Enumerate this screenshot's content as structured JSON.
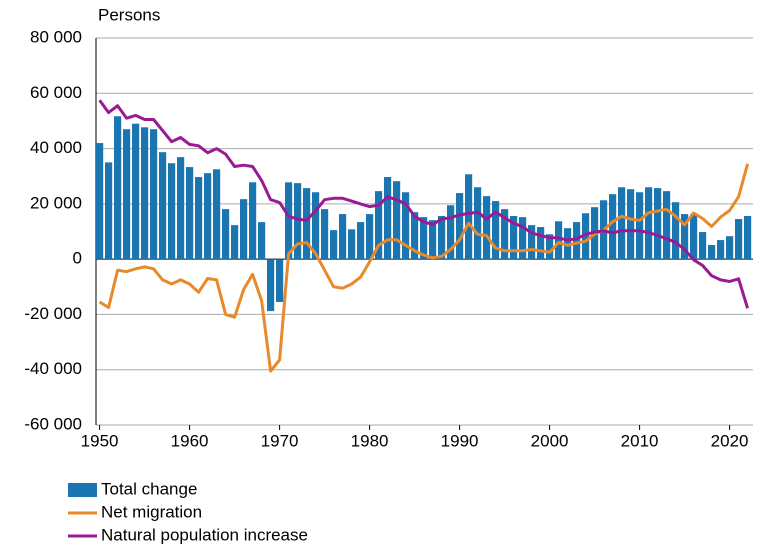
{
  "chart_data": {
    "type": "bar_line",
    "y_label": "Persons",
    "x": [
      1950,
      1951,
      1952,
      1953,
      1954,
      1955,
      1956,
      1957,
      1958,
      1959,
      1960,
      1961,
      1962,
      1963,
      1964,
      1965,
      1966,
      1967,
      1968,
      1969,
      1970,
      1971,
      1972,
      1973,
      1974,
      1975,
      1976,
      1977,
      1978,
      1979,
      1980,
      1981,
      1982,
      1983,
      1984,
      1985,
      1986,
      1987,
      1988,
      1989,
      1990,
      1991,
      1992,
      1993,
      1994,
      1995,
      1996,
      1997,
      1998,
      1999,
      2000,
      2001,
      2002,
      2003,
      2004,
      2005,
      2006,
      2007,
      2008,
      2009,
      2010,
      2011,
      2012,
      2013,
      2014,
      2015,
      2016,
      2017,
      2018,
      2019,
      2020,
      2021,
      2022
    ],
    "series": [
      {
        "name": "Total change",
        "kind": "bar",
        "color": "#1b75b1",
        "values": [
          42000,
          35000,
          51700,
          47000,
          49000,
          47700,
          47000,
          38700,
          34700,
          36900,
          33300,
          29700,
          31100,
          32500,
          18100,
          12300,
          21700,
          27800,
          13400,
          -18800,
          -15500,
          27800,
          27500,
          25700,
          24200,
          18100,
          10500,
          16300,
          10800,
          13400,
          16300,
          24600,
          29700,
          28200,
          24200,
          17000,
          15200,
          14100,
          15600,
          19500,
          23900,
          30700,
          26000,
          22800,
          21000,
          18100,
          15600,
          15200,
          12300,
          11600,
          9000,
          13700,
          11200,
          13400,
          16600,
          18800,
          21300,
          23500,
          26000,
          25300,
          24200,
          26000,
          25700,
          24600,
          20600,
          16300,
          16300,
          9800,
          5100,
          6900,
          8300,
          14500,
          15600
        ]
      },
      {
        "name": "Net migration",
        "kind": "line",
        "color": "#e8892a",
        "values": [
          -15500,
          -17500,
          -4000,
          -4500,
          -3500,
          -2800,
          -3500,
          -7500,
          -9000,
          -7500,
          -9000,
          -12000,
          -7000,
          -7500,
          -20000,
          -21000,
          -11000,
          -5500,
          -15000,
          -40500,
          -36500,
          2000,
          5500,
          6000,
          2000,
          -4000,
          -10000,
          -10500,
          -9000,
          -6500,
          -1000,
          5000,
          7000,
          7000,
          5000,
          3000,
          1500,
          500,
          1000,
          3500,
          7000,
          13000,
          9000,
          8500,
          4000,
          3000,
          3000,
          3000,
          3500,
          3000,
          2500,
          6000,
          5000,
          5800,
          6500,
          9000,
          10500,
          13500,
          15500,
          14500,
          14000,
          16800,
          17400,
          18000,
          15500,
          12400,
          16700,
          14700,
          11800,
          15200,
          17600,
          22600,
          34500
        ]
      },
      {
        "name": "Natural population increase",
        "kind": "line",
        "color": "#9a1a95",
        "values": [
          57500,
          53000,
          55500,
          51000,
          52000,
          50500,
          50500,
          46500,
          42500,
          44000,
          41500,
          41000,
          38500,
          40000,
          38000,
          33500,
          34000,
          33500,
          28500,
          21500,
          20500,
          15500,
          14500,
          14000,
          17500,
          21500,
          22000,
          22000,
          21000,
          20000,
          19000,
          19500,
          22500,
          21500,
          20000,
          15500,
          13500,
          12500,
          14500,
          15000,
          16000,
          16500,
          17000,
          14500,
          17000,
          15000,
          13000,
          11700,
          9500,
          8500,
          7800,
          7700,
          6900,
          7400,
          8900,
          9800,
          10200,
          9500,
          10300,
          10300,
          10300,
          9600,
          8600,
          7400,
          6100,
          3500,
          -200,
          -2300,
          -6000,
          -7500,
          -8100,
          -7100,
          -17800
        ]
      }
    ],
    "xlim": [
      1949.6,
      2022.6
    ],
    "xticks": [
      1950,
      1960,
      1970,
      1980,
      1990,
      2000,
      2010,
      2020
    ],
    "ylim": [
      -60000,
      80000
    ],
    "yticks": [
      {
        "value": -60000,
        "label": "-60 000"
      },
      {
        "value": -40000,
        "label": "-40 000"
      },
      {
        "value": -20000,
        "label": "-20 000"
      },
      0,
      {
        "value": 20000,
        "label": "20 000"
      },
      {
        "value": 40000,
        "label": "40 000"
      },
      {
        "value": 60000,
        "label": "60 000"
      },
      {
        "value": 80000,
        "label": "80 000"
      }
    ],
    "grid": true
  }
}
